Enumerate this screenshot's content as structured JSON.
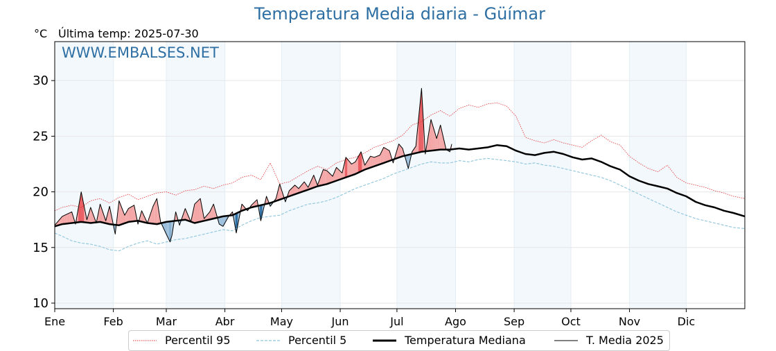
{
  "page": {
    "title": "Temperatura Media diaria - Güímar",
    "unit": "°C",
    "last_temp": "Última temp: 2025-07-30",
    "watermark": "WWW.EMBALSES.NET"
  },
  "colors": {
    "title": "#2e6fa3",
    "p95": "#e03030",
    "p5": "#8ec5dc",
    "median": "#000000",
    "current": "#000000",
    "above_fill": "#f4a6a6",
    "above_strong": "#e8585c",
    "below_fill": "#9cbfdc",
    "below_strong": "#2e6fa3",
    "band": "#f3f8fc"
  },
  "chart_data": {
    "type": "line",
    "title": "Temperatura Media diaria - Güímar",
    "ylabel": "°C",
    "ylim": [
      9.5,
      33.5
    ],
    "xlim": [
      1,
      366
    ],
    "yticks": [
      10,
      15,
      20,
      25,
      30
    ],
    "month_ticks": [
      {
        "label": "Ene",
        "day": 1
      },
      {
        "label": "Feb",
        "day": 32
      },
      {
        "label": "Mar",
        "day": 60
      },
      {
        "label": "Abr",
        "day": 91
      },
      {
        "label": "May",
        "day": 121
      },
      {
        "label": "Jun",
        "day": 152
      },
      {
        "label": "Jul",
        "day": 182
      },
      {
        "label": "Ago",
        "day": 213
      },
      {
        "label": "Sep",
        "day": 244
      },
      {
        "label": "Oct",
        "day": 274
      },
      {
        "label": "Nov",
        "day": 305
      },
      {
        "label": "Dic",
        "day": 335
      }
    ],
    "grid": true,
    "legend_position": "bottom",
    "series": [
      {
        "name": "Percentil 95",
        "style": "dotted",
        "x": [
          1,
          5,
          10,
          15,
          20,
          25,
          30,
          35,
          40,
          45,
          50,
          55,
          60,
          65,
          70,
          75,
          80,
          85,
          90,
          95,
          100,
          105,
          110,
          115,
          120,
          125,
          130,
          135,
          140,
          145,
          150,
          155,
          160,
          165,
          170,
          175,
          180,
          185,
          190,
          195,
          200,
          205,
          210,
          215,
          220,
          225,
          230,
          235,
          240,
          245,
          250,
          255,
          260,
          265,
          270,
          275,
          280,
          285,
          290,
          295,
          300,
          305,
          310,
          315,
          320,
          325,
          330,
          335,
          340,
          345,
          350,
          355,
          360,
          366
        ],
        "values": [
          18.3,
          18.6,
          18.8,
          18.6,
          19.2,
          19.4,
          19.0,
          19.5,
          19.8,
          19.3,
          19.6,
          19.9,
          20.0,
          19.7,
          20.1,
          20.2,
          20.5,
          20.3,
          20.6,
          20.8,
          21.3,
          21.5,
          21.1,
          22.6,
          20.7,
          20.9,
          21.4,
          21.9,
          22.3,
          22.0,
          22.6,
          22.9,
          23.1,
          23.5,
          24.0,
          24.3,
          24.6,
          25.1,
          26.0,
          26.3,
          26.9,
          27.3,
          26.8,
          27.5,
          27.8,
          27.6,
          27.9,
          28.0,
          27.7,
          26.8,
          24.9,
          24.6,
          24.4,
          24.7,
          24.4,
          24.2,
          24.0,
          24.6,
          25.1,
          24.5,
          24.2,
          23.2,
          22.6,
          22.1,
          21.8,
          22.4,
          21.3,
          20.8,
          20.6,
          20.4,
          20.1,
          19.9,
          19.6,
          19.4
        ]
      },
      {
        "name": "Percentil 5",
        "style": "dashed",
        "x": [
          1,
          5,
          10,
          15,
          20,
          25,
          30,
          35,
          40,
          45,
          50,
          55,
          60,
          65,
          70,
          75,
          80,
          85,
          90,
          95,
          100,
          105,
          110,
          115,
          120,
          125,
          130,
          135,
          140,
          145,
          150,
          155,
          160,
          165,
          170,
          175,
          180,
          185,
          190,
          195,
          200,
          205,
          210,
          215,
          220,
          225,
          230,
          235,
          240,
          245,
          250,
          255,
          260,
          265,
          270,
          275,
          280,
          285,
          290,
          295,
          300,
          305,
          310,
          315,
          320,
          325,
          330,
          335,
          340,
          345,
          350,
          355,
          360,
          366
        ],
        "values": [
          16.3,
          16.0,
          15.6,
          15.4,
          15.3,
          15.1,
          14.8,
          14.7,
          15.1,
          15.4,
          15.6,
          15.3,
          15.5,
          15.7,
          15.8,
          16.0,
          16.2,
          16.4,
          16.6,
          16.5,
          17.0,
          17.4,
          17.7,
          17.8,
          17.9,
          18.3,
          18.6,
          18.9,
          19.0,
          19.2,
          19.5,
          19.9,
          20.3,
          20.6,
          20.9,
          21.2,
          21.6,
          21.9,
          22.2,
          22.5,
          22.7,
          22.6,
          22.6,
          22.8,
          22.7,
          22.9,
          23.0,
          22.9,
          22.8,
          22.7,
          22.5,
          22.6,
          22.4,
          22.3,
          22.1,
          21.9,
          21.7,
          21.5,
          21.3,
          21.0,
          20.6,
          20.2,
          19.8,
          19.4,
          19.0,
          18.6,
          18.2,
          17.9,
          17.6,
          17.4,
          17.2,
          17.0,
          16.8,
          16.7
        ]
      },
      {
        "name": "Temperatura Mediana",
        "style": "solid-thick",
        "x": [
          1,
          5,
          10,
          15,
          20,
          25,
          30,
          35,
          40,
          45,
          50,
          55,
          60,
          65,
          70,
          75,
          80,
          85,
          90,
          95,
          100,
          105,
          110,
          115,
          120,
          125,
          130,
          135,
          140,
          145,
          150,
          155,
          160,
          165,
          170,
          175,
          180,
          185,
          190,
          195,
          200,
          205,
          210,
          215,
          220,
          225,
          230,
          235,
          240,
          245,
          250,
          255,
          260,
          265,
          270,
          275,
          280,
          285,
          290,
          295,
          300,
          305,
          310,
          315,
          320,
          325,
          330,
          335,
          340,
          345,
          350,
          355,
          360,
          366
        ],
        "values": [
          16.9,
          17.1,
          17.2,
          17.3,
          17.2,
          17.3,
          17.1,
          17.0,
          17.3,
          17.4,
          17.2,
          17.1,
          17.3,
          17.4,
          17.5,
          17.2,
          17.4,
          17.6,
          17.8,
          17.9,
          18.3,
          18.6,
          18.8,
          19.0,
          19.3,
          19.6,
          19.9,
          20.2,
          20.5,
          20.7,
          21.0,
          21.3,
          21.6,
          22.0,
          22.3,
          22.6,
          22.9,
          23.2,
          23.4,
          23.6,
          23.7,
          23.8,
          23.8,
          23.9,
          23.8,
          23.9,
          24.0,
          24.2,
          24.1,
          23.7,
          23.4,
          23.3,
          23.5,
          23.6,
          23.4,
          23.1,
          22.9,
          23.0,
          22.7,
          22.3,
          22.0,
          21.4,
          21.0,
          20.7,
          20.5,
          20.3,
          19.9,
          19.6,
          19.1,
          18.8,
          18.6,
          18.3,
          18.1,
          17.8
        ]
      },
      {
        "name": "T. Media 2025",
        "style": "solid-thin",
        "x": [
          1,
          5,
          10,
          12,
          15,
          18,
          20,
          23,
          25,
          28,
          30,
          33,
          35,
          38,
          40,
          43,
          45,
          47,
          50,
          53,
          55,
          57,
          60,
          62,
          63,
          65,
          67,
          70,
          73,
          75,
          78,
          80,
          83,
          85,
          88,
          90,
          93,
          95,
          97,
          100,
          103,
          105,
          108,
          110,
          113,
          115,
          118,
          120,
          123,
          125,
          128,
          130,
          133,
          135,
          138,
          140,
          143,
          145,
          148,
          150,
          153,
          155,
          158,
          160,
          163,
          165,
          168,
          170,
          173,
          175,
          178,
          180,
          183,
          185,
          188,
          190,
          192,
          195,
          197,
          200,
          203,
          205,
          208,
          210,
          211
        ],
        "values": [
          17.0,
          17.8,
          18.2,
          17.1,
          20.0,
          17.5,
          18.6,
          17.2,
          18.9,
          17.4,
          18.7,
          16.2,
          19.2,
          17.9,
          18.5,
          18.8,
          17.1,
          18.3,
          17.2,
          18.7,
          19.4,
          17.3,
          16.2,
          15.5,
          16.1,
          18.2,
          17.0,
          18.5,
          17.3,
          18.9,
          19.4,
          17.6,
          18.2,
          18.9,
          17.1,
          16.9,
          17.8,
          18.2,
          16.3,
          18.9,
          18.3,
          18.8,
          19.3,
          17.4,
          19.6,
          18.7,
          19.4,
          20.7,
          19.1,
          20.1,
          20.6,
          20.3,
          20.9,
          20.4,
          21.5,
          20.6,
          22.0,
          21.9,
          21.4,
          22.2,
          21.7,
          23.1,
          22.5,
          22.7,
          23.6,
          22.4,
          23.2,
          23.1,
          23.3,
          24.0,
          23.7,
          22.6,
          24.3,
          23.9,
          22.1,
          23.6,
          24.1,
          29.3,
          23.4,
          26.5,
          24.8,
          26.0,
          23.8,
          23.6,
          24.3
        ]
      }
    ]
  },
  "legend": [
    {
      "label": "Percentil 95"
    },
    {
      "label": "Percentil 5"
    },
    {
      "label": "Temperatura Mediana"
    },
    {
      "label": "T. Media 2025"
    }
  ]
}
